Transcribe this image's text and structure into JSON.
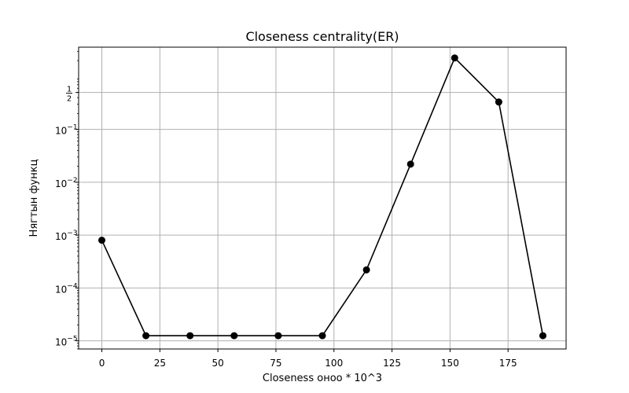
{
  "chart_data": {
    "type": "line",
    "title": "Closeness centrality(ER)",
    "xlabel": "Closeness оноо * 10^3",
    "ylabel": "Нягтын функц",
    "x_scale": "linear",
    "y_scale": "log",
    "xlim": [
      -10,
      200
    ],
    "ylim": [
      7e-06,
      3.6
    ],
    "grid": true,
    "x_ticks": [
      0,
      25,
      50,
      75,
      100,
      125,
      150,
      175
    ],
    "y_ticks": [
      {
        "value": 1e-05,
        "base": "10",
        "exp": "−5"
      },
      {
        "value": 0.0001,
        "base": "10",
        "exp": "−4"
      },
      {
        "value": 0.001,
        "base": "10",
        "exp": "−3"
      },
      {
        "value": 0.01,
        "base": "10",
        "exp": "−2"
      },
      {
        "value": 0.1,
        "base": "10",
        "exp": "−1"
      },
      {
        "value": 0.5,
        "frac_num": "1",
        "frac_den": "2"
      }
    ],
    "series": [
      {
        "color": "#000000",
        "marker": "circle",
        "x": [
          0,
          19,
          38,
          57,
          76,
          95,
          114,
          133,
          152,
          171,
          190
        ],
        "y": [
          0.0008,
          1.25e-05,
          1.25e-05,
          1.25e-05,
          1.25e-05,
          1.25e-05,
          0.00022,
          0.022,
          2.25,
          0.33,
          1.25e-05
        ]
      }
    ]
  }
}
